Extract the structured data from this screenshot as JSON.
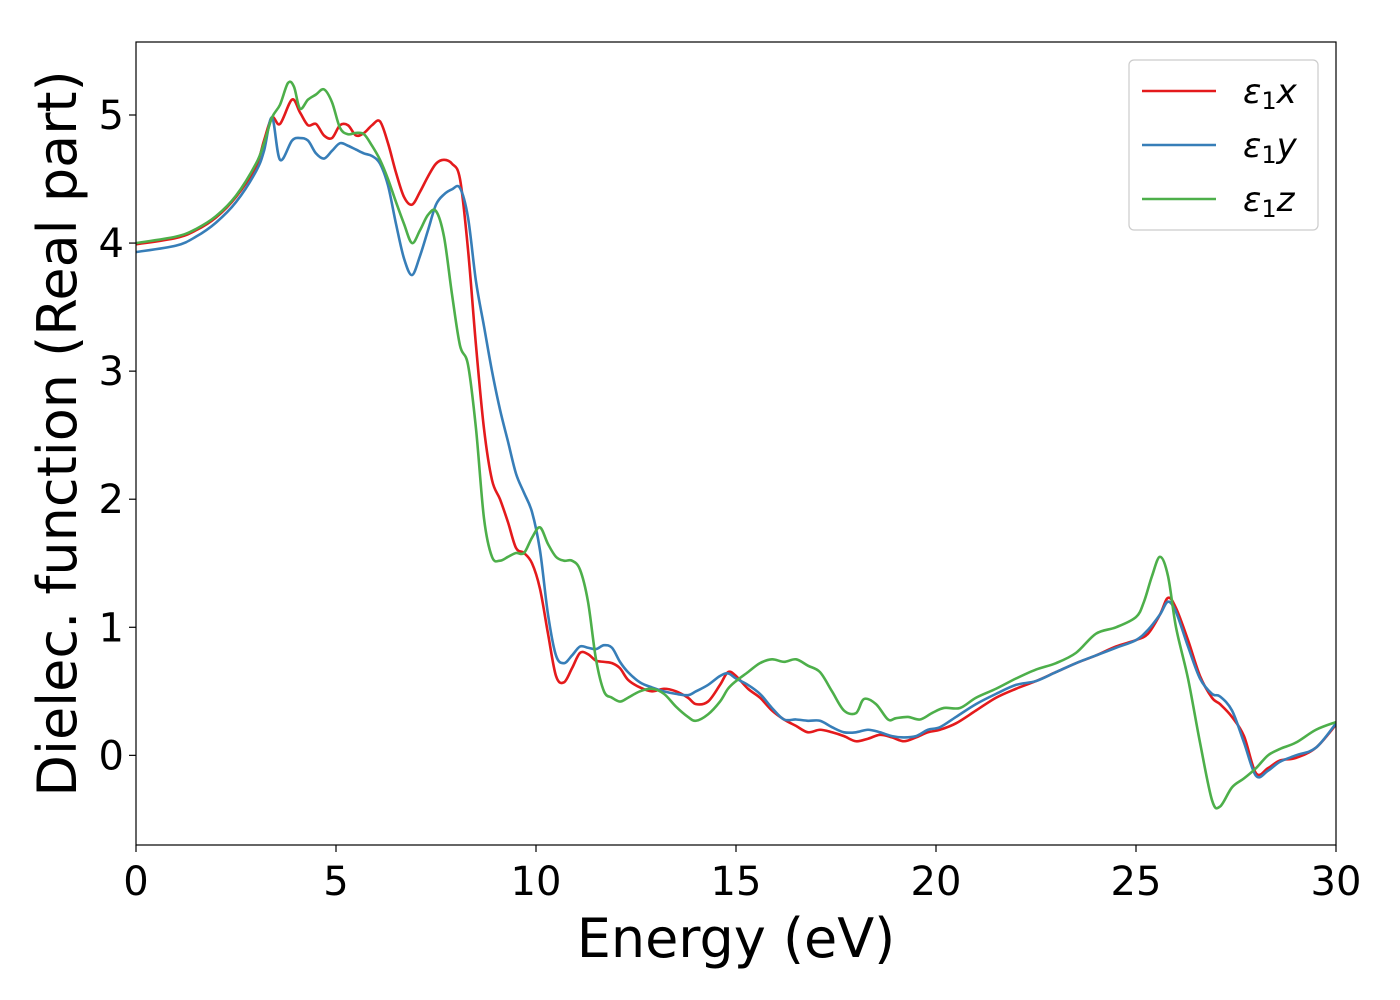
{
  "chart_data": {
    "type": "line",
    "xlabel": "Energy (eV)",
    "ylabel": "Dielec. function (Real part)",
    "xlim": [
      0,
      30
    ],
    "ylim": [
      -0.7,
      5.57
    ],
    "xticks": [
      0,
      5,
      10,
      15,
      20,
      25,
      30
    ],
    "yticks": [
      0,
      1,
      2,
      3,
      4,
      5
    ],
    "grid": false,
    "legend_position": "top-right",
    "series": [
      {
        "name": "ε₁x",
        "legend_base": "ε",
        "legend_sub": "1",
        "legend_var": "x",
        "color": "#e41a1c",
        "x": [
          0,
          1,
          1.5,
          2,
          2.5,
          3,
          3.2,
          3.4,
          3.6,
          3.9,
          4.1,
          4.3,
          4.5,
          4.7,
          4.9,
          5.1,
          5.3,
          5.5,
          5.7,
          5.9,
          6.1,
          6.3,
          6.5,
          6.7,
          6.9,
          7.1,
          7.3,
          7.5,
          7.7,
          7.9,
          8.1,
          8.3,
          8.5,
          8.7,
          8.9,
          9.1,
          9.3,
          9.5,
          9.7,
          9.9,
          10.1,
          10.3,
          10.5,
          10.7,
          10.9,
          11.1,
          11.3,
          11.5,
          11.7,
          11.9,
          12.1,
          12.3,
          12.6,
          12.9,
          13.2,
          13.5,
          13.8,
          14.0,
          14.3,
          14.6,
          14.8,
          15.0,
          15.3,
          15.6,
          15.9,
          16.2,
          16.5,
          16.8,
          17.1,
          17.4,
          17.7,
          18.0,
          18.3,
          18.6,
          18.9,
          19.2,
          19.5,
          19.8,
          20.1,
          20.5,
          21,
          21.5,
          22,
          22.5,
          23,
          23.5,
          24,
          24.5,
          25,
          25.3,
          25.6,
          25.8,
          26,
          26.3,
          26.6,
          26.9,
          27.1,
          27.4,
          27.7,
          28,
          28.3,
          28.6,
          29,
          29.5,
          30
        ],
        "y": [
          3.99,
          4.04,
          4.1,
          4.2,
          4.36,
          4.6,
          4.8,
          4.98,
          4.93,
          5.12,
          5.02,
          4.92,
          4.93,
          4.84,
          4.82,
          4.92,
          4.92,
          4.84,
          4.86,
          4.92,
          4.95,
          4.78,
          4.55,
          4.36,
          4.3,
          4.4,
          4.52,
          4.62,
          4.65,
          4.62,
          4.5,
          3.95,
          3.2,
          2.55,
          2.15,
          2.0,
          1.82,
          1.62,
          1.58,
          1.5,
          1.3,
          0.95,
          0.62,
          0.57,
          0.68,
          0.8,
          0.79,
          0.74,
          0.73,
          0.72,
          0.68,
          0.59,
          0.53,
          0.5,
          0.52,
          0.5,
          0.45,
          0.4,
          0.42,
          0.55,
          0.65,
          0.62,
          0.52,
          0.45,
          0.35,
          0.28,
          0.23,
          0.18,
          0.2,
          0.18,
          0.15,
          0.11,
          0.13,
          0.16,
          0.14,
          0.11,
          0.14,
          0.18,
          0.2,
          0.25,
          0.35,
          0.45,
          0.52,
          0.58,
          0.65,
          0.72,
          0.78,
          0.85,
          0.9,
          0.95,
          1.1,
          1.23,
          1.15,
          0.9,
          0.62,
          0.45,
          0.4,
          0.3,
          0.15,
          -0.14,
          -0.1,
          -0.04,
          -0.02,
          0.06,
          0.24
        ]
      },
      {
        "name": "ε₁y",
        "legend_base": "ε",
        "legend_sub": "1",
        "legend_var": "y",
        "color": "#377eb8",
        "x": [
          0,
          1,
          1.5,
          2,
          2.5,
          3,
          3.2,
          3.4,
          3.6,
          3.9,
          4.1,
          4.3,
          4.5,
          4.7,
          4.9,
          5.1,
          5.3,
          5.5,
          5.7,
          5.9,
          6.1,
          6.3,
          6.5,
          6.7,
          6.9,
          7.1,
          7.3,
          7.5,
          7.7,
          7.9,
          8.1,
          8.3,
          8.5,
          8.7,
          8.9,
          9.1,
          9.3,
          9.5,
          9.7,
          9.9,
          10.1,
          10.3,
          10.5,
          10.7,
          10.9,
          11.1,
          11.3,
          11.5,
          11.7,
          11.9,
          12.1,
          12.3,
          12.6,
          12.9,
          13.2,
          13.5,
          13.8,
          14.0,
          14.3,
          14.6,
          14.8,
          15.0,
          15.3,
          15.6,
          15.9,
          16.2,
          16.5,
          16.8,
          17.1,
          17.4,
          17.7,
          18.0,
          18.3,
          18.6,
          18.9,
          19.2,
          19.5,
          19.8,
          20.1,
          20.5,
          21,
          21.5,
          22,
          22.5,
          23,
          23.5,
          24,
          24.5,
          25,
          25.3,
          25.6,
          25.8,
          26,
          26.3,
          26.6,
          26.9,
          27.1,
          27.4,
          27.7,
          28,
          28.3,
          28.6,
          29,
          29.5,
          30
        ],
        "y": [
          3.93,
          3.98,
          4.05,
          4.16,
          4.32,
          4.56,
          4.72,
          4.98,
          4.65,
          4.8,
          4.82,
          4.8,
          4.7,
          4.66,
          4.72,
          4.78,
          4.76,
          4.73,
          4.7,
          4.68,
          4.62,
          4.45,
          4.15,
          3.88,
          3.75,
          3.9,
          4.1,
          4.3,
          4.38,
          4.42,
          4.43,
          4.2,
          3.7,
          3.35,
          3.0,
          2.7,
          2.45,
          2.2,
          2.05,
          1.9,
          1.6,
          1.1,
          0.78,
          0.72,
          0.78,
          0.85,
          0.84,
          0.83,
          0.86,
          0.84,
          0.73,
          0.65,
          0.57,
          0.53,
          0.5,
          0.48,
          0.47,
          0.5,
          0.55,
          0.62,
          0.64,
          0.6,
          0.55,
          0.48,
          0.37,
          0.28,
          0.28,
          0.27,
          0.27,
          0.22,
          0.18,
          0.18,
          0.2,
          0.18,
          0.15,
          0.14,
          0.15,
          0.2,
          0.22,
          0.3,
          0.4,
          0.48,
          0.55,
          0.58,
          0.65,
          0.72,
          0.78,
          0.84,
          0.9,
          0.98,
          1.1,
          1.2,
          1.12,
          0.85,
          0.6,
          0.48,
          0.46,
          0.35,
          0.1,
          -0.16,
          -0.12,
          -0.05,
          0.0,
          0.06,
          0.25
        ]
      },
      {
        "name": "ε₁z",
        "legend_base": "ε",
        "legend_sub": "1",
        "legend_var": "z",
        "color": "#4daf4a",
        "x": [
          0,
          1,
          1.5,
          2,
          2.5,
          3,
          3.2,
          3.4,
          3.6,
          3.8,
          3.95,
          4.1,
          4.3,
          4.5,
          4.7,
          4.9,
          5.1,
          5.3,
          5.5,
          5.7,
          5.9,
          6.1,
          6.3,
          6.5,
          6.7,
          6.9,
          7.1,
          7.3,
          7.5,
          7.7,
          7.9,
          8.1,
          8.3,
          8.5,
          8.7,
          8.9,
          9.1,
          9.3,
          9.5,
          9.7,
          9.9,
          10.1,
          10.3,
          10.5,
          10.7,
          10.9,
          11.1,
          11.3,
          11.5,
          11.7,
          11.9,
          12.1,
          12.3,
          12.6,
          12.9,
          13.2,
          13.5,
          13.8,
          14.0,
          14.3,
          14.6,
          14.8,
          15.0,
          15.3,
          15.6,
          15.9,
          16.2,
          16.5,
          16.8,
          17.1,
          17.4,
          17.7,
          18.0,
          18.2,
          18.5,
          18.8,
          19.0,
          19.3,
          19.6,
          19.9,
          20.2,
          20.6,
          21,
          21.5,
          22,
          22.5,
          23,
          23.5,
          24,
          24.5,
          25,
          25.2,
          25.4,
          25.6,
          25.8,
          26,
          26.3,
          26.6,
          26.9,
          27.1,
          27.4,
          27.7,
          28,
          28.3,
          28.6,
          29,
          29.5,
          30
        ],
        "y": [
          4.0,
          4.05,
          4.11,
          4.21,
          4.37,
          4.62,
          4.78,
          4.98,
          5.08,
          5.25,
          5.22,
          5.05,
          5.12,
          5.16,
          5.2,
          5.1,
          4.9,
          4.85,
          4.86,
          4.85,
          4.76,
          4.65,
          4.5,
          4.32,
          4.15,
          4.0,
          4.1,
          4.22,
          4.25,
          4.05,
          3.6,
          3.2,
          3.05,
          2.55,
          1.85,
          1.55,
          1.52,
          1.55,
          1.58,
          1.58,
          1.7,
          1.78,
          1.65,
          1.55,
          1.52,
          1.52,
          1.45,
          1.2,
          0.75,
          0.5,
          0.45,
          0.42,
          0.45,
          0.5,
          0.52,
          0.48,
          0.38,
          0.3,
          0.27,
          0.32,
          0.42,
          0.52,
          0.58,
          0.65,
          0.72,
          0.75,
          0.73,
          0.75,
          0.7,
          0.65,
          0.5,
          0.35,
          0.33,
          0.44,
          0.4,
          0.28,
          0.29,
          0.3,
          0.28,
          0.33,
          0.37,
          0.37,
          0.45,
          0.52,
          0.6,
          0.67,
          0.72,
          0.8,
          0.95,
          1.0,
          1.08,
          1.2,
          1.4,
          1.55,
          1.4,
          1.0,
          0.6,
          0.1,
          -0.35,
          -0.4,
          -0.25,
          -0.18,
          -0.1,
          0.0,
          0.05,
          0.1,
          0.2,
          0.26
        ]
      }
    ]
  }
}
